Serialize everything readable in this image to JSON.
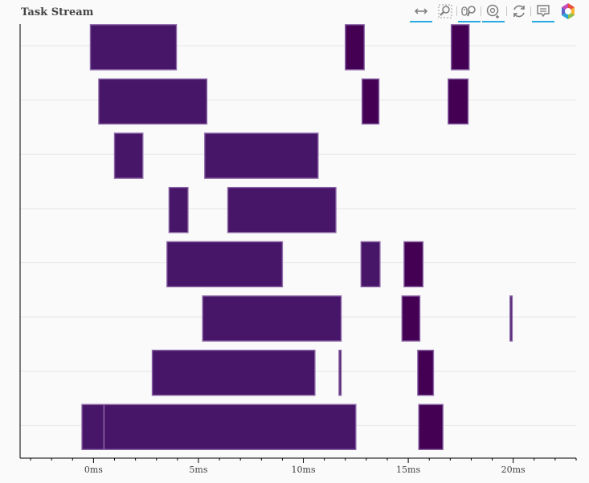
{
  "title": "Task Stream",
  "toolbar": {
    "tools": [
      {
        "icon": "xpan-icon",
        "active": true
      },
      {
        "icon": "box-zoom-icon",
        "active": false
      },
      {
        "icon": "wheel-zoom-icon",
        "active": true
      },
      {
        "icon": "tap-icon",
        "active": true
      },
      {
        "icon": "reset-icon",
        "active": false
      },
      {
        "icon": "hover-icon",
        "active": true
      },
      {
        "icon": "bokeh-logo-icon",
        "active": false
      }
    ]
  },
  "chart_data": {
    "type": "gantt",
    "title": "Task Stream",
    "xlabel": "",
    "ylabel": "",
    "x_unit": "ms",
    "xlim": [
      -3.5,
      23
    ],
    "x_ticks": [
      0,
      5,
      10,
      15,
      20
    ],
    "x_tick_labels": [
      "0ms",
      "5ms",
      "10ms",
      "15ms",
      "20ms"
    ],
    "rows": 8,
    "grid": true,
    "colors": {
      "compute": "#471668",
      "transfer": "#440154",
      "edge": "#8a64a6"
    },
    "tasks": [
      {
        "row": 0,
        "start": -0.15,
        "end": 3.95,
        "kind": "compute"
      },
      {
        "row": 0,
        "start": 12.0,
        "end": 12.9,
        "kind": "transfer"
      },
      {
        "row": 0,
        "start": 17.05,
        "end": 17.9,
        "kind": "transfer"
      },
      {
        "row": 1,
        "start": 0.25,
        "end": 5.4,
        "kind": "compute"
      },
      {
        "row": 1,
        "start": 12.8,
        "end": 13.6,
        "kind": "transfer"
      },
      {
        "row": 1,
        "start": 16.9,
        "end": 17.85,
        "kind": "transfer"
      },
      {
        "row": 2,
        "start": 1.0,
        "end": 2.35,
        "kind": "compute"
      },
      {
        "row": 2,
        "start": 5.3,
        "end": 10.7,
        "kind": "compute"
      },
      {
        "row": 3,
        "start": 3.6,
        "end": 4.5,
        "kind": "compute"
      },
      {
        "row": 3,
        "start": 6.4,
        "end": 11.55,
        "kind": "compute"
      },
      {
        "row": 4,
        "start": 3.5,
        "end": 9.0,
        "kind": "compute"
      },
      {
        "row": 4,
        "start": 12.75,
        "end": 13.65,
        "kind": "compute"
      },
      {
        "row": 4,
        "start": 14.8,
        "end": 15.7,
        "kind": "transfer"
      },
      {
        "row": 5,
        "start": 5.2,
        "end": 11.8,
        "kind": "compute"
      },
      {
        "row": 5,
        "start": 14.7,
        "end": 15.55,
        "kind": "transfer"
      },
      {
        "row": 5,
        "start": 19.85,
        "end": 19.95,
        "kind": "compute"
      },
      {
        "row": 6,
        "start": 2.8,
        "end": 10.55,
        "kind": "compute"
      },
      {
        "row": 6,
        "start": 11.7,
        "end": 11.8,
        "kind": "compute"
      },
      {
        "row": 6,
        "start": 15.45,
        "end": 16.2,
        "kind": "transfer"
      },
      {
        "row": 7,
        "start": -0.55,
        "end": 0.5,
        "kind": "compute"
      },
      {
        "row": 7,
        "start": 0.5,
        "end": 12.5,
        "kind": "compute"
      },
      {
        "row": 7,
        "start": 15.5,
        "end": 16.65,
        "kind": "transfer"
      }
    ]
  }
}
